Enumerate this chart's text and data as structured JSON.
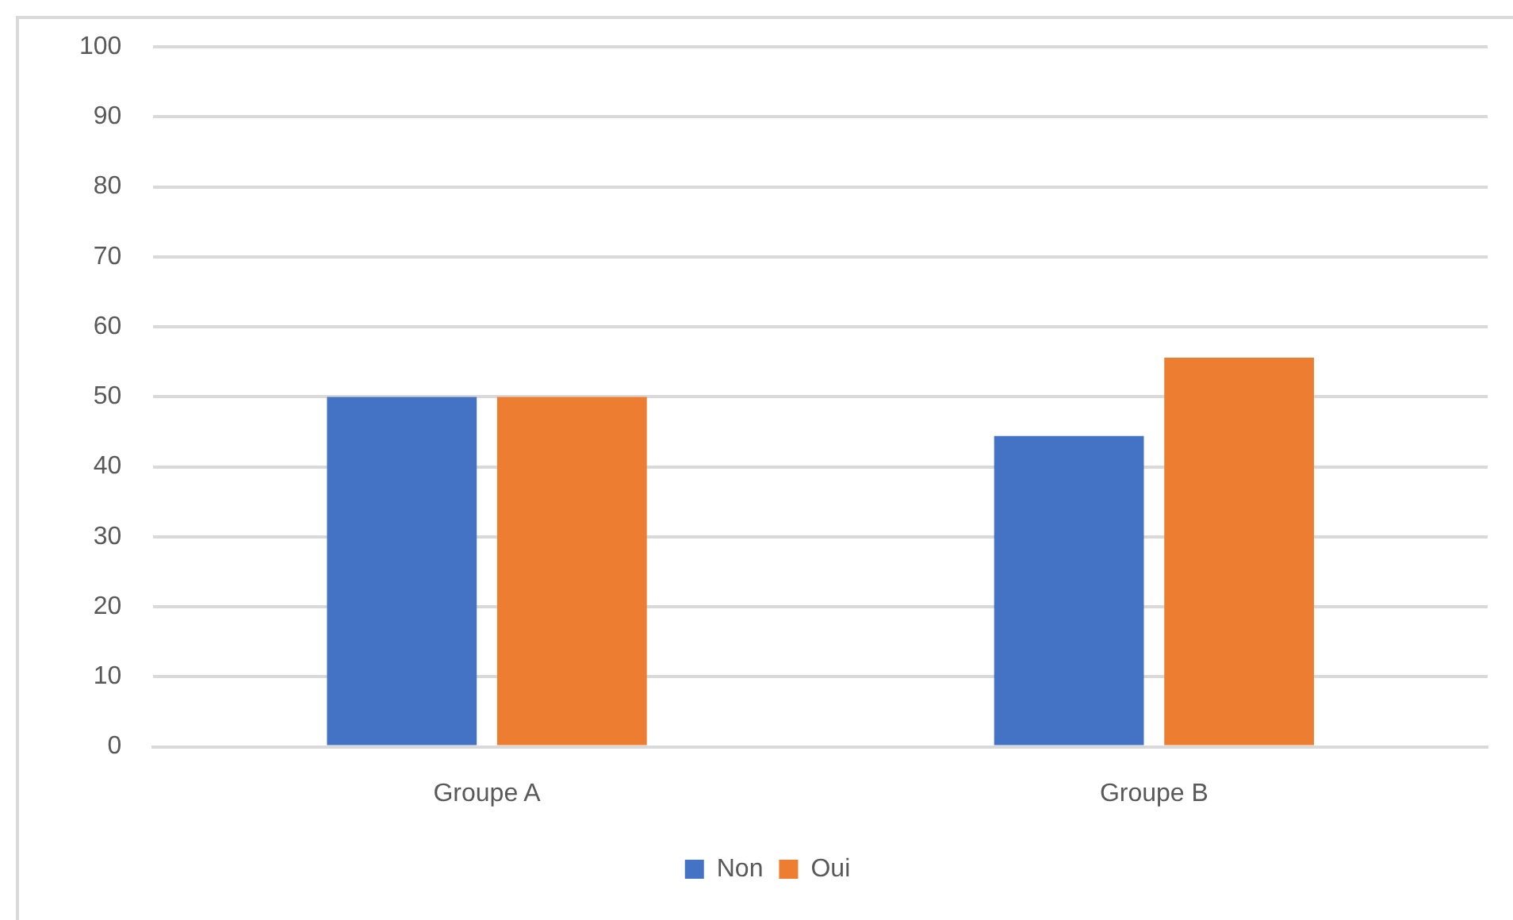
{
  "chart_data": {
    "type": "bar",
    "categories": [
      "Groupe A",
      "Groupe B"
    ],
    "series": [
      {
        "name": "Non",
        "color": "#4472c4",
        "values": [
          50,
          44.4
        ]
      },
      {
        "name": "Oui",
        "color": "#ed7d31",
        "values": [
          50,
          55.6
        ]
      }
    ],
    "ylim": [
      0,
      100
    ],
    "yticks": [
      0,
      10,
      20,
      30,
      40,
      50,
      60,
      70,
      80,
      90,
      100
    ],
    "grid": "y",
    "legend": "bottom"
  }
}
